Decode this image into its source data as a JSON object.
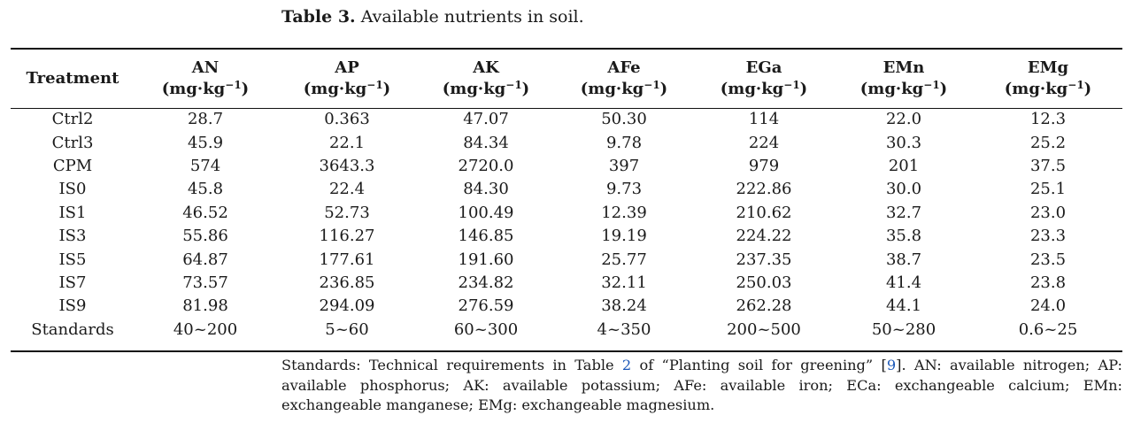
{
  "caption": {
    "label": "Table 3.",
    "text": "Available nutrients in soil."
  },
  "table": {
    "columns": [
      {
        "name": "Treatment",
        "unit": ""
      },
      {
        "name": "AN",
        "unit": "(mg·kg−1)"
      },
      {
        "name": "AP",
        "unit": "(mg·kg−1)"
      },
      {
        "name": "AK",
        "unit": "(mg·kg−1)"
      },
      {
        "name": "AFe",
        "unit": "(mg·kg−1)"
      },
      {
        "name": "EGa",
        "unit": "(mg·kg−1)"
      },
      {
        "name": "EMn",
        "unit": "(mg·kg−1)"
      },
      {
        "name": "EMg",
        "unit": "(mg·kg−1)"
      }
    ],
    "rows": [
      [
        "Ctrl2",
        "28.7",
        "0.363",
        "47.07",
        "50.30",
        "114",
        "22.0",
        "12.3"
      ],
      [
        "Ctrl3",
        "45.9",
        "22.1",
        "84.34",
        "9.78",
        "224",
        "30.3",
        "25.2"
      ],
      [
        "CPM",
        "574",
        "3643.3",
        "2720.0",
        "397",
        "979",
        "201",
        "37.5"
      ],
      [
        "IS0",
        "45.8",
        "22.4",
        "84.30",
        "9.73",
        "222.86",
        "30.0",
        "25.1"
      ],
      [
        "IS1",
        "46.52",
        "52.73",
        "100.49",
        "12.39",
        "210.62",
        "32.7",
        "23.0"
      ],
      [
        "IS3",
        "55.86",
        "116.27",
        "146.85",
        "19.19",
        "224.22",
        "35.8",
        "23.3"
      ],
      [
        "IS5",
        "64.87",
        "177.61",
        "191.60",
        "25.77",
        "237.35",
        "38.7",
        "23.5"
      ],
      [
        "IS7",
        "73.57",
        "236.85",
        "234.82",
        "32.11",
        "250.03",
        "41.4",
        "23.8"
      ],
      [
        "IS9",
        "81.98",
        "294.09",
        "276.59",
        "38.24",
        "262.28",
        "44.1",
        "24.0"
      ],
      [
        "Standards",
        "40~200",
        "5~60",
        "60~300",
        "4~350",
        "200~500",
        "50~280",
        "0.6~25"
      ]
    ]
  },
  "footnote": {
    "part1": "Standards: Technical requirements in Table ",
    "table_ref": "2",
    "part2": " of “Planting soil for greening” [",
    "cite_ref": "9",
    "part3": "]. AN: available nitrogen; AP: available phosphorus; AK: available potassium; AFe: available iron; ECa: exchangeable calcium; EMn: exchangeable manganese; EMg: exchangeable magnesium."
  },
  "colors": {
    "link": "#1a57b8",
    "text": "#1a1a1a"
  }
}
